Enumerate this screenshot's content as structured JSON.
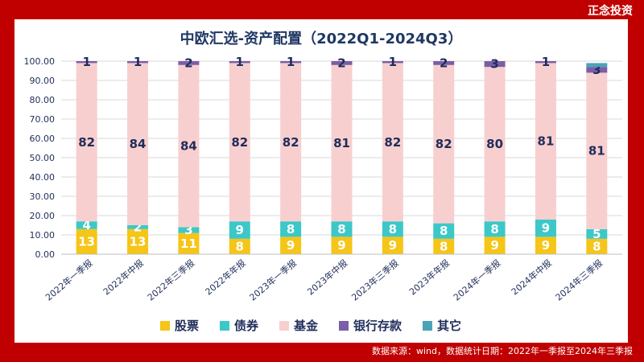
{
  "header": {
    "brand": "正念投资"
  },
  "footer": {
    "source": "数据来源：wind，数据统计日期：2022年一季报至2024年三季报"
  },
  "colors": {
    "股票": "#f5c518",
    "债券": "#3cc8c8",
    "基金": "#f8cfcf",
    "银行存款": "#7b5ea7",
    "其它": "#4aa3b8"
  },
  "chart_data": {
    "type": "bar",
    "stacked": true,
    "title": "中欧汇选-资产配置（2022Q1-2024Q3）",
    "categories": [
      "2022年一季报",
      "2022年中报",
      "2022年三季报",
      "2022年年报",
      "2023年一季报",
      "2023年中报",
      "2023年三季报",
      "2023年年报",
      "2024年一季报",
      "2024年中报",
      "2024年三季报"
    ],
    "ylim": [
      0,
      100
    ],
    "yticks": [
      "0.00",
      "10.00",
      "20.00",
      "30.00",
      "40.00",
      "50.00",
      "60.00",
      "70.00",
      "80.00",
      "90.00",
      "100.00"
    ],
    "legend_position": "bottom",
    "series": [
      {
        "name": "股票",
        "values": [
          13,
          13,
          11,
          8,
          9,
          9,
          9,
          8,
          9,
          9,
          8
        ],
        "labels": [
          "13",
          "13",
          "11",
          "8",
          "9",
          "9",
          "9",
          "8",
          "9",
          "9",
          "8"
        ]
      },
      {
        "name": "债券",
        "values": [
          4,
          2,
          3,
          9,
          8,
          8,
          8,
          8,
          8,
          9,
          5
        ],
        "labels": [
          "4",
          "2",
          "3",
          "9",
          "8",
          "8",
          "8",
          "8",
          "8",
          "9",
          "5"
        ]
      },
      {
        "name": "基金",
        "values": [
          82,
          84,
          84,
          82,
          82,
          81,
          82,
          82,
          80,
          81,
          81
        ],
        "labels": [
          "82",
          "84",
          "84",
          "82",
          "82",
          "81",
          "82",
          "82",
          "80",
          "81",
          "81"
        ]
      },
      {
        "name": "银行存款",
        "values": [
          1,
          1,
          2,
          1,
          1,
          2,
          1,
          2,
          3,
          1,
          3
        ],
        "labels": [
          "1",
          "1",
          "2",
          "1",
          "1",
          "2",
          "1",
          "2",
          "3",
          "1",
          "3"
        ]
      },
      {
        "name": "其它",
        "values": [
          0,
          0,
          0,
          0,
          0,
          0,
          0,
          0,
          0,
          0,
          2
        ],
        "labels": [
          "",
          "",
          "",
          "",
          "",
          "",
          "",
          "",
          "",
          "",
          ""
        ]
      }
    ]
  }
}
